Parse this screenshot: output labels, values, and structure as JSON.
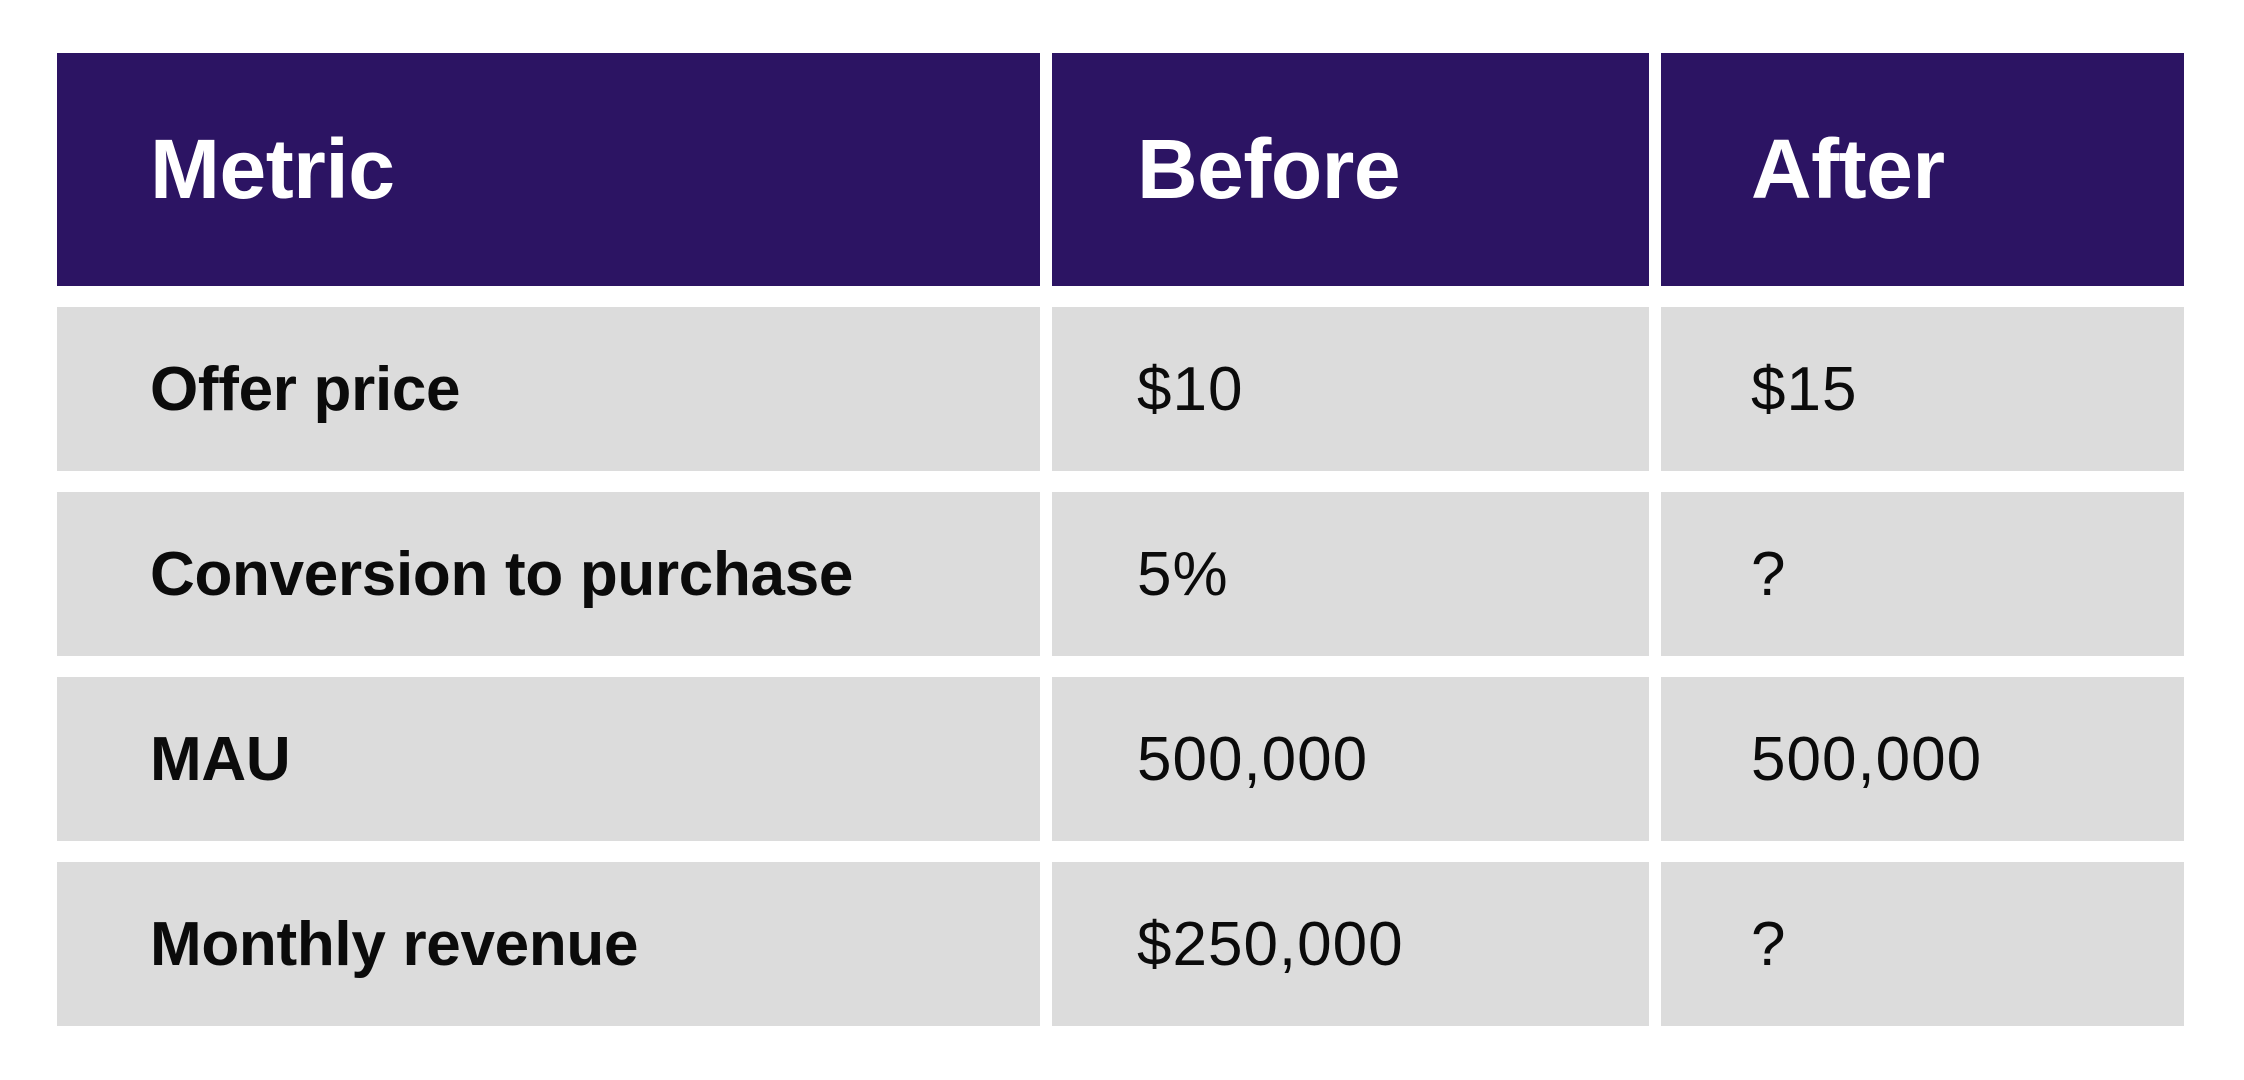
{
  "colors": {
    "header_background": "#2c1463",
    "header_text": "#ffffff",
    "row_background": "#dcdcdc",
    "row_text": "#0b0b0b"
  },
  "table": {
    "headers": [
      "Metric",
      "Before",
      "After"
    ],
    "rows": [
      {
        "metric": "Offer price",
        "before": "$10",
        "after": "$15"
      },
      {
        "metric": "Conversion to purchase",
        "before": "5%",
        "after": "?"
      },
      {
        "metric": "MAU",
        "before": "500,000",
        "after": "500,000"
      },
      {
        "metric": "Monthly revenue",
        "before": "$250,000",
        "after": "?"
      }
    ]
  }
}
